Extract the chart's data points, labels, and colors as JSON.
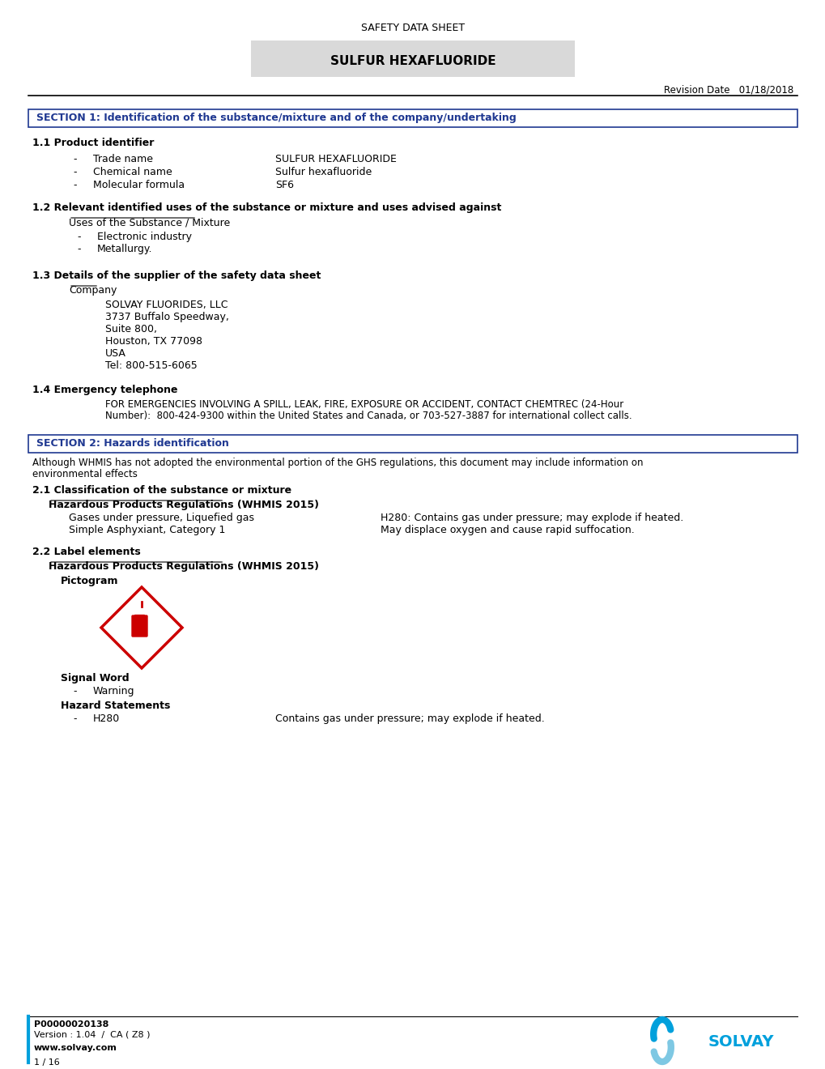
{
  "page_title": "SAFETY DATA SHEET",
  "product_name": "SULFUR HEXAFLUORIDE",
  "revision_date": "Revision Date   01/18/2018",
  "section1_title": "SECTION 1: Identification of the substance/mixture and of the company/undertaking",
  "s1_1_header": "1.1 Product identifier",
  "product_items": [
    [
      "Trade name",
      "SULFUR HEXAFLUORIDE"
    ],
    [
      "Chemical name",
      "Sulfur hexafluoride"
    ],
    [
      "Molecular formula",
      "SF6"
    ]
  ],
  "s1_2_header": "1.2 Relevant identified uses of the substance or mixture and uses advised against",
  "uses_subheader": "Uses of the Substance / Mixture",
  "uses_items": [
    "Electronic industry",
    "Metallurgy."
  ],
  "s1_3_header": "1.3 Details of the supplier of the safety data sheet",
  "company_subheader": "Company",
  "company_address": [
    "SOLVAY FLUORIDES, LLC",
    "3737 Buffalo Speedway,",
    "Suite 800,",
    "Houston, TX 77098",
    "USA",
    "Tel: 800-515-6065"
  ],
  "s1_4_header": "1.4 Emergency telephone",
  "emergency_line1": "FOR EMERGENCIES INVOLVING A SPILL, LEAK, FIRE, EXPOSURE OR ACCIDENT, CONTACT CHEMTREC (24-Hour",
  "emergency_line2": "Number):  800-424-9300 within the United States and Canada, or 703-527-3887 for international collect calls.",
  "section2_title": "SECTION 2: Hazards identification",
  "section2_intro1": "Although WHMIS has not adopted the environmental portion of the GHS regulations, this document may include information on",
  "section2_intro2": "environmental effects",
  "s2_1_header": "2.1 Classification of the substance or mixture",
  "hazardous_subheader": "Hazardous Products Regulations (WHMIS 2015)",
  "classification_left": [
    "Gases under pressure, Liquefied gas",
    "Simple Asphyxiant, Category 1"
  ],
  "classification_right": [
    "H280: Contains gas under pressure; may explode if heated.",
    "May displace oxygen and cause rapid suffocation."
  ],
  "s2_2_header": "2.2 Label elements",
  "label_subheader": "Hazardous Products Regulations (WHMIS 2015)",
  "pictogram_label": "Pictogram",
  "signal_word_header": "Signal Word",
  "signal_word": "Warning",
  "hazard_stmt_header": "Hazard Statements",
  "hazard_stmt_code": "H280",
  "hazard_stmt_text": "Contains gas under pressure; may explode if heated.",
  "footer_code": "P00000020138",
  "footer_version": "Version : 1.04  /  CA ( Z8 )",
  "footer_website": "www.solvay.com",
  "footer_page": "1 / 16",
  "blue_color": "#1F3891",
  "section_bg": "#d9d9d9",
  "header_bg": "#d9d9d9",
  "solvay_blue": "#00A0DC",
  "red_color": "#CC0000"
}
